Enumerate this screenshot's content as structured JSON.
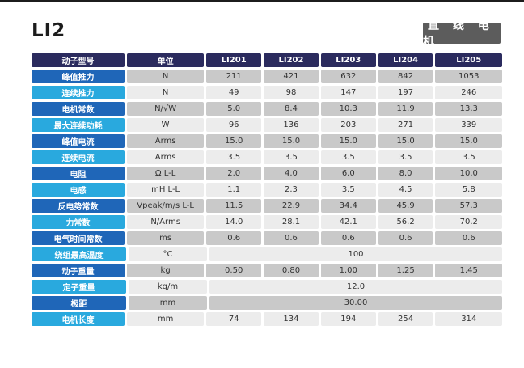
{
  "header": {
    "title": "LI2",
    "category": "直 线 电 机"
  },
  "table": {
    "columns": [
      "动子型号",
      "单位",
      "LI201",
      "LI202",
      "LI203",
      "LI204",
      "LI205"
    ],
    "rows": [
      {
        "label": "峰值推力",
        "unit": "N",
        "values": [
          "211",
          "421",
          "632",
          "842",
          "1053"
        ]
      },
      {
        "label": "连续推力",
        "unit": "N",
        "values": [
          "49",
          "98",
          "147",
          "197",
          "246"
        ]
      },
      {
        "label": "电机常数",
        "unit": "N/√W",
        "values": [
          "5.0",
          "8.4",
          "10.3",
          "11.9",
          "13.3"
        ]
      },
      {
        "label": "最大连续功耗",
        "unit": "W",
        "values": [
          "96",
          "136",
          "203",
          "271",
          "339"
        ]
      },
      {
        "label": "峰值电流",
        "unit": "Arms",
        "values": [
          "15.0",
          "15.0",
          "15.0",
          "15.0",
          "15.0"
        ]
      },
      {
        "label": "连续电流",
        "unit": "Arms",
        "values": [
          "3.5",
          "3.5",
          "3.5",
          "3.5",
          "3.5"
        ]
      },
      {
        "label": "电阻",
        "unit": "Ω L-L",
        "values": [
          "2.0",
          "4.0",
          "6.0",
          "8.0",
          "10.0"
        ]
      },
      {
        "label": "电感",
        "unit": "mH L-L",
        "values": [
          "1.1",
          "2.3",
          "3.5",
          "4.5",
          "5.8"
        ]
      },
      {
        "label": "反电势常数",
        "unit": "Vpeak/m/s L-L",
        "values": [
          "11.5",
          "22.9",
          "34.4",
          "45.9",
          "57.3"
        ]
      },
      {
        "label": "力常数",
        "unit": "N/Arms",
        "values": [
          "14.0",
          "28.1",
          "42.1",
          "56.2",
          "70.2"
        ]
      },
      {
        "label": "电气时间常数",
        "unit": "ms",
        "values": [
          "0.6",
          "0.6",
          "0.6",
          "0.6",
          "0.6"
        ]
      },
      {
        "label": "绕组最高温度",
        "unit": "°C",
        "span": "100"
      },
      {
        "label": "动子重量",
        "unit": "kg",
        "values": [
          "0.50",
          "0.80",
          "1.00",
          "1.25",
          "1.45"
        ]
      },
      {
        "label": "定子重量",
        "unit": "kg/m",
        "span": "12.0"
      },
      {
        "label": "极距",
        "unit": "mm",
        "span": "30.00"
      },
      {
        "label": "电机长度",
        "unit": "mm",
        "values": [
          "74",
          "134",
          "194",
          "254",
          "314"
        ]
      }
    ]
  }
}
